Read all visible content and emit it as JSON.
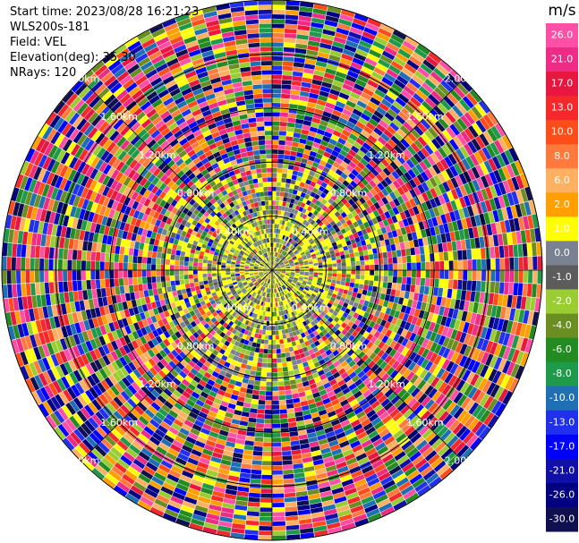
{
  "header": {
    "start_time": "Start time: 2023/08/28 16:21:23",
    "instrument": "WLS200s-181",
    "field": "Field: VEL",
    "elevation": "Elevation(deg): 35.30",
    "nrays": "NRays: 120"
  },
  "chart_data": {
    "type": "heatmap",
    "subtype": "polar-ppi",
    "field": "VEL",
    "unit": "m/s",
    "rays": 120,
    "range_rings_km": [
      {
        "value": 0.4,
        "label": "0.40km"
      },
      {
        "value": 0.8,
        "label": "0.80km"
      },
      {
        "value": 1.2,
        "label": "1.20km"
      },
      {
        "value": 1.6,
        "label": "1.60km"
      },
      {
        "value": 2.0,
        "label": "2.00km"
      }
    ],
    "max_range_km": 2.0,
    "colorbar": {
      "ticks": [
        "26.0",
        "21.0",
        "17.0",
        "13.0",
        "10.0",
        "8.0",
        "6.0",
        "2.0",
        "1.0",
        "0.0",
        "-1.0",
        "-2.0",
        "-4.0",
        "-6.0",
        "-8.0",
        "-10.0",
        "-13.0",
        "-17.0",
        "-21.0",
        "-26.0",
        "-30.0"
      ],
      "colors": [
        "#ff4fa7",
        "#ee2b85",
        "#e8173f",
        "#f5282b",
        "#ff4d1a",
        "#ff7a3c",
        "#ffb060",
        "#ffa000",
        "#ffff00",
        "#7a8291",
        "#5c5c5c",
        "#9acd32",
        "#6b8e23",
        "#228b22",
        "#1e9a4a",
        "#1f6fb5",
        "#2030ee",
        "#0000ff",
        "#1010a8",
        "#000080",
        "#101050"
      ],
      "range": [
        -30,
        26
      ]
    },
    "pattern": "inner ~0.9 km dominated by near-zero / light positive velocities (grey, yellow, green); outer range gates dominated by noise across full color scale"
  }
}
